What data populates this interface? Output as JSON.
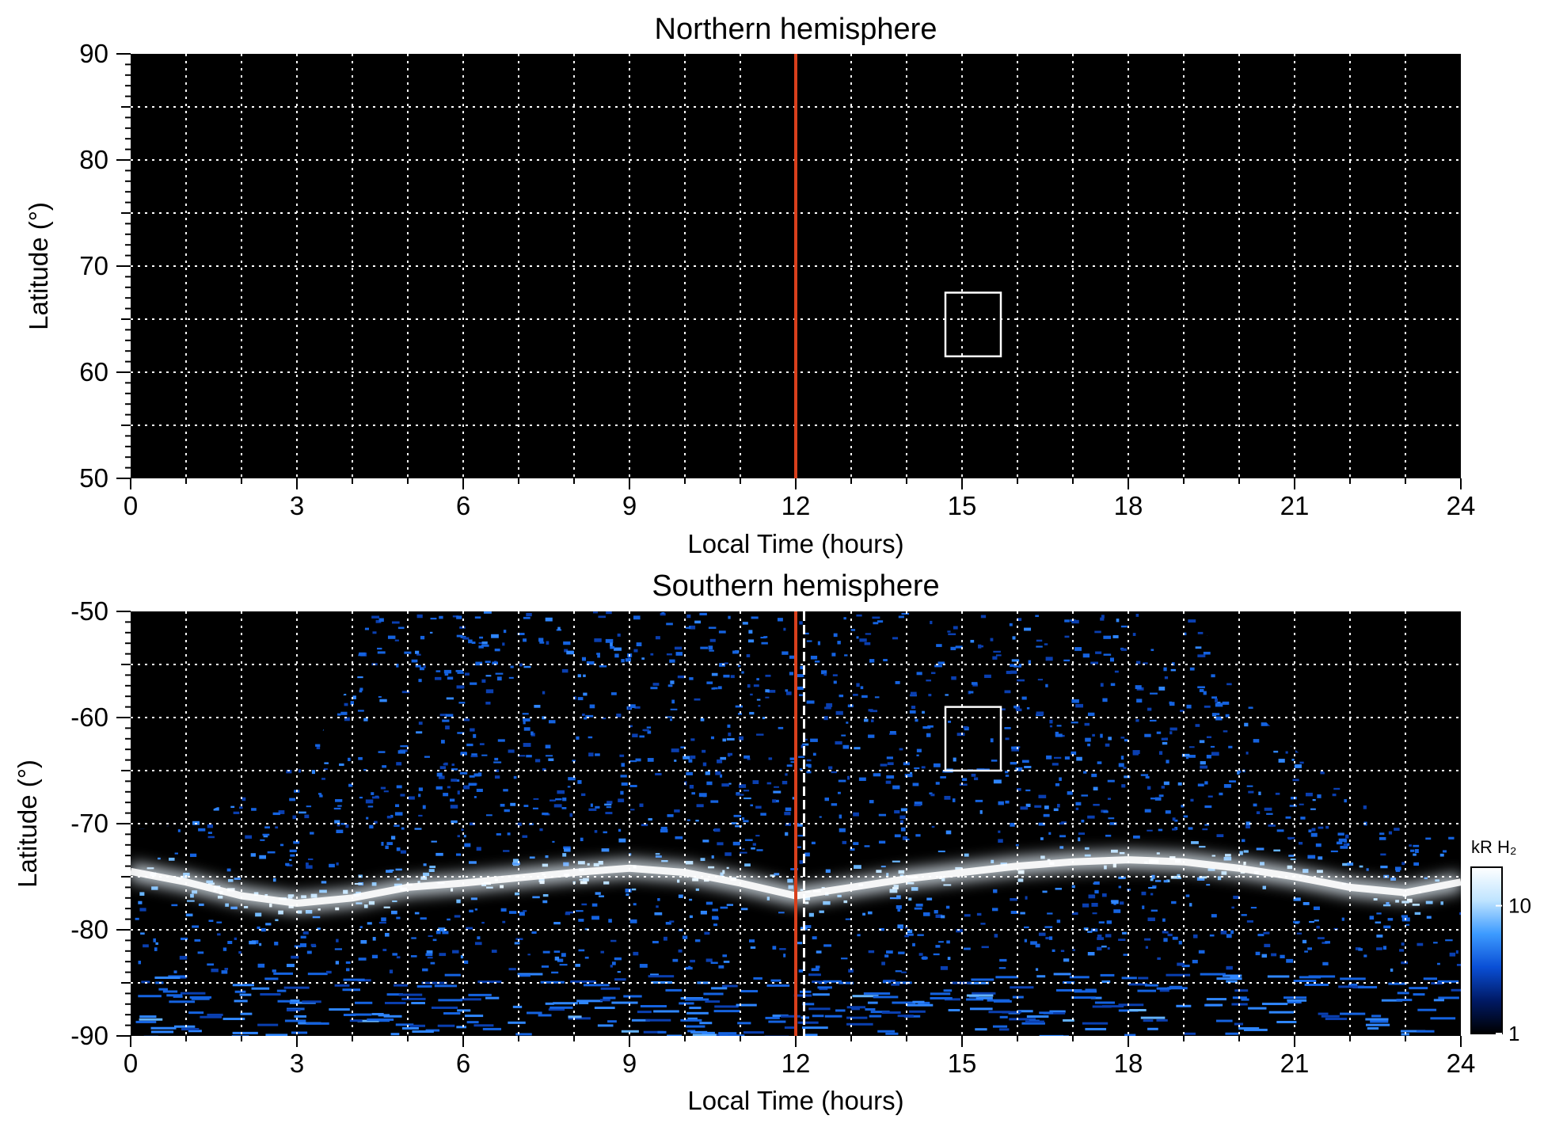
{
  "chart_data": [
    {
      "type": "heatmap",
      "title": "Northern hemisphere",
      "xlabel": "Local Time (hours)",
      "ylabel": "Latitude (°)",
      "xlim": [
        0,
        24
      ],
      "ylim": [
        50,
        90
      ],
      "xticks": [
        0,
        3,
        6,
        9,
        12,
        15,
        18,
        21,
        24
      ],
      "yticks": [
        50,
        60,
        70,
        80,
        90
      ],
      "xtick_labels": [
        "0",
        "3",
        "6",
        "9",
        "12",
        "15",
        "18",
        "21",
        "24"
      ],
      "ytick_labels": [
        "50",
        "60",
        "70",
        "80",
        "90"
      ],
      "grid": true,
      "background": "#000000",
      "emission": "none",
      "noon_line": {
        "x": 12,
        "color": "#d8401c"
      },
      "box": {
        "x0": 14.7,
        "x1": 15.7,
        "y0": 61.5,
        "y1": 67.5
      }
    },
    {
      "type": "heatmap",
      "title": "Southern hemisphere",
      "xlabel": "Local Time (hours)",
      "ylabel": "Latitude (°)",
      "xlim": [
        0,
        24
      ],
      "ylim": [
        -90,
        -50
      ],
      "xticks": [
        0,
        3,
        6,
        9,
        12,
        15,
        18,
        21,
        24
      ],
      "yticks": [
        -90,
        -80,
        -70,
        -60,
        -50
      ],
      "xtick_labels": [
        "0",
        "3",
        "6",
        "9",
        "12",
        "15",
        "18",
        "21",
        "24"
      ],
      "ytick_labels": [
        "-90",
        "-80",
        "-70",
        "-60",
        "-50"
      ],
      "grid": true,
      "background": "#000000",
      "noon_line": {
        "x": 12,
        "color": "#d8401c"
      },
      "dashed_line": {
        "x": 12.15,
        "color": "#ffffff"
      },
      "box": {
        "x0": 14.7,
        "x1": 15.7,
        "y0": -65,
        "y1": -59
      },
      "coverage_edge": [
        {
          "x": 0.0,
          "y": -70.5
        },
        {
          "x": 0.5,
          "y": -70.5
        },
        {
          "x": 1.0,
          "y": -69.6
        },
        {
          "x": 1.5,
          "y": -68.6
        },
        {
          "x": 2.0,
          "y": -67.4
        },
        {
          "x": 2.5,
          "y": -65.9
        },
        {
          "x": 3.0,
          "y": -64.2
        },
        {
          "x": 3.5,
          "y": -61.0
        },
        {
          "x": 4.0,
          "y": -56.4
        },
        {
          "x": 4.3,
          "y": -50.0
        },
        {
          "x": 19.2,
          "y": -50.0
        },
        {
          "x": 19.6,
          "y": -54.0
        },
        {
          "x": 20.0,
          "y": -57.5
        },
        {
          "x": 20.5,
          "y": -60.5
        },
        {
          "x": 21.0,
          "y": -63.0
        },
        {
          "x": 21.5,
          "y": -65.0
        },
        {
          "x": 22.0,
          "y": -66.8
        },
        {
          "x": 22.5,
          "y": -68.4
        },
        {
          "x": 23.0,
          "y": -69.7
        },
        {
          "x": 23.4,
          "y": -70.5
        },
        {
          "x": 24.0,
          "y": -70.5
        }
      ],
      "oval": [
        {
          "x": 0.0,
          "y": -74.5
        },
        {
          "x": 1.0,
          "y": -75.5
        },
        {
          "x": 2.0,
          "y": -76.8
        },
        {
          "x": 3.0,
          "y": -77.5
        },
        {
          "x": 4.0,
          "y": -77.0
        },
        {
          "x": 5.0,
          "y": -76.0
        },
        {
          "x": 6.0,
          "y": -75.6
        },
        {
          "x": 7.0,
          "y": -75.1
        },
        {
          "x": 8.0,
          "y": -74.6
        },
        {
          "x": 9.0,
          "y": -74.2
        },
        {
          "x": 10.0,
          "y": -74.6
        },
        {
          "x": 11.0,
          "y": -75.6
        },
        {
          "x": 12.0,
          "y": -76.8
        },
        {
          "x": 13.0,
          "y": -76.0
        },
        {
          "x": 14.0,
          "y": -75.2
        },
        {
          "x": 15.0,
          "y": -74.6
        },
        {
          "x": 16.0,
          "y": -74.0
        },
        {
          "x": 17.0,
          "y": -73.6
        },
        {
          "x": 18.0,
          "y": -73.4
        },
        {
          "x": 19.0,
          "y": -73.6
        },
        {
          "x": 20.0,
          "y": -74.2
        },
        {
          "x": 21.0,
          "y": -75.0
        },
        {
          "x": 22.0,
          "y": -76.0
        },
        {
          "x": 23.0,
          "y": -76.5
        },
        {
          "x": 24.0,
          "y": -75.5
        }
      ],
      "colorbar": {
        "label": "kR H₂",
        "tick_labels": [
          "1",
          "10"
        ],
        "ticks": [
          1,
          10
        ],
        "range": [
          1,
          20
        ],
        "scale": "log",
        "colors": [
          "#000000",
          "#001a66",
          "#0a4fd6",
          "#3d9bff",
          "#bfe4ff",
          "#ffffff"
        ]
      }
    }
  ]
}
